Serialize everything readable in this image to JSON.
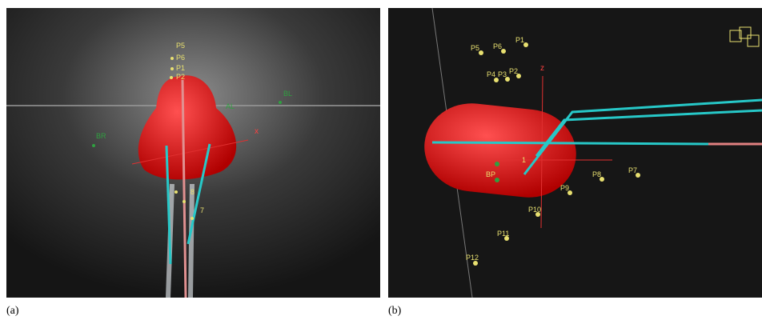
{
  "panels": [
    {
      "caption": "(a)",
      "labels": {
        "p5": "P5",
        "p6": "P6",
        "p1": "P1",
        "p2": "P2",
        "al": "AL",
        "bl": "BL",
        "br": "BR",
        "x": "x",
        "n8": "8",
        "n7": "7"
      }
    },
    {
      "caption": "(b)",
      "labels": {
        "p5": "P5",
        "p6": "P6",
        "p1": "P1",
        "p4": "P4",
        "p3": "P3",
        "p2": "P2",
        "z": "z",
        "bp": "BP",
        "n1": "1",
        "p8": "P8",
        "p7": "P7",
        "p9": "P9",
        "p10": "P10",
        "p11": "P11",
        "p12": "P12"
      }
    }
  ]
}
